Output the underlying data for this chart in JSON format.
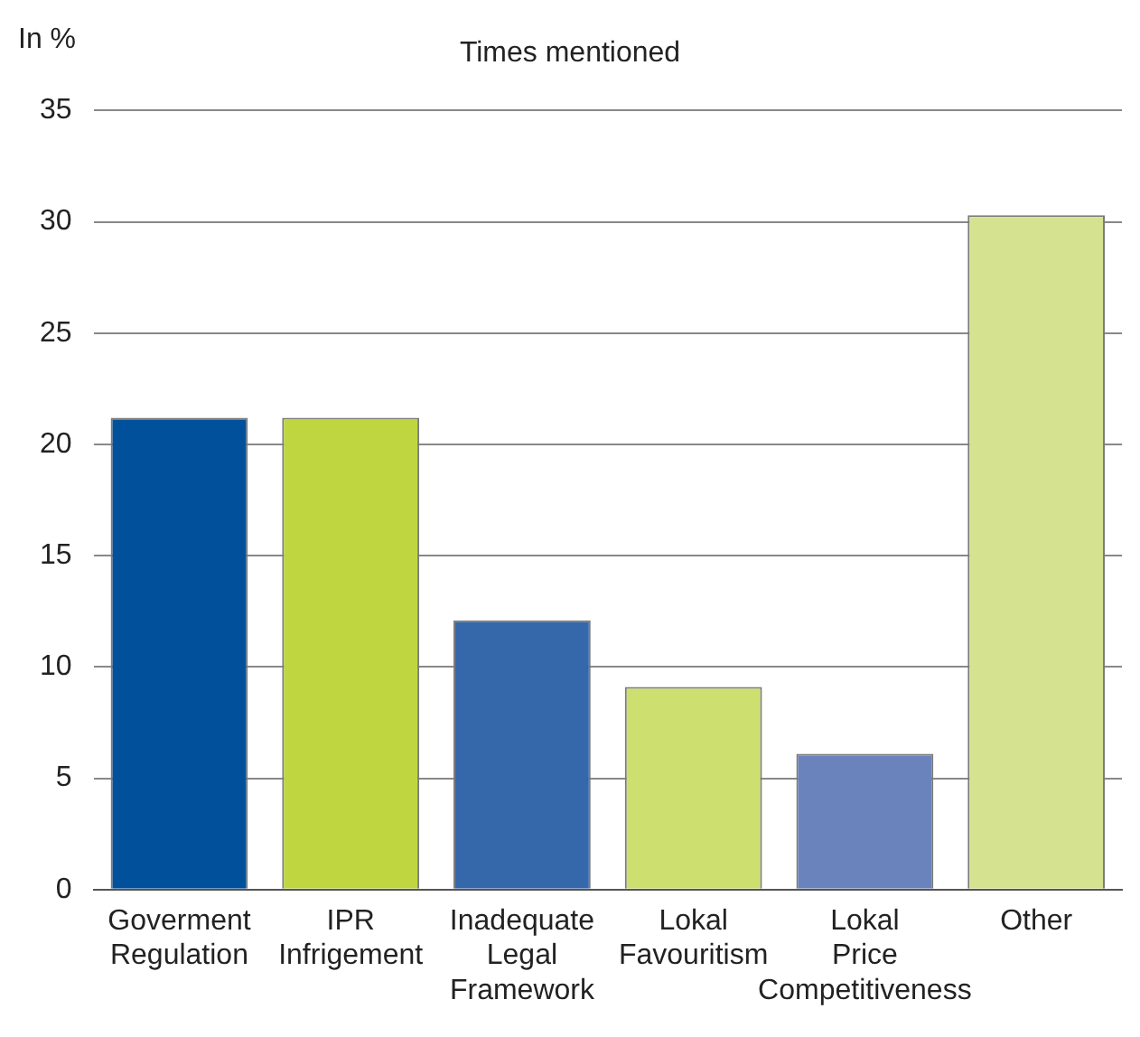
{
  "chart_data": {
    "type": "bar",
    "title": "Times mentioned",
    "ylabel": "In %",
    "categories": [
      "Goverment Regulation",
      "IPR Infrigement",
      "Inadequate Legal Framework",
      "Lokal Favouritism",
      "Lokal Price Competitiveness",
      "Other"
    ],
    "values": [
      21.2,
      21.2,
      12.1,
      9.1,
      6.1,
      30.3
    ],
    "colors": [
      "#00509b",
      "#bfd641",
      "#3567ab",
      "#cddf6e",
      "#6b83bd",
      "#d5e390"
    ],
    "ylim": [
      0,
      35
    ],
    "yticks": [
      0,
      5,
      10,
      15,
      20,
      25,
      30,
      35
    ],
    "grid": "y",
    "legend": false
  }
}
